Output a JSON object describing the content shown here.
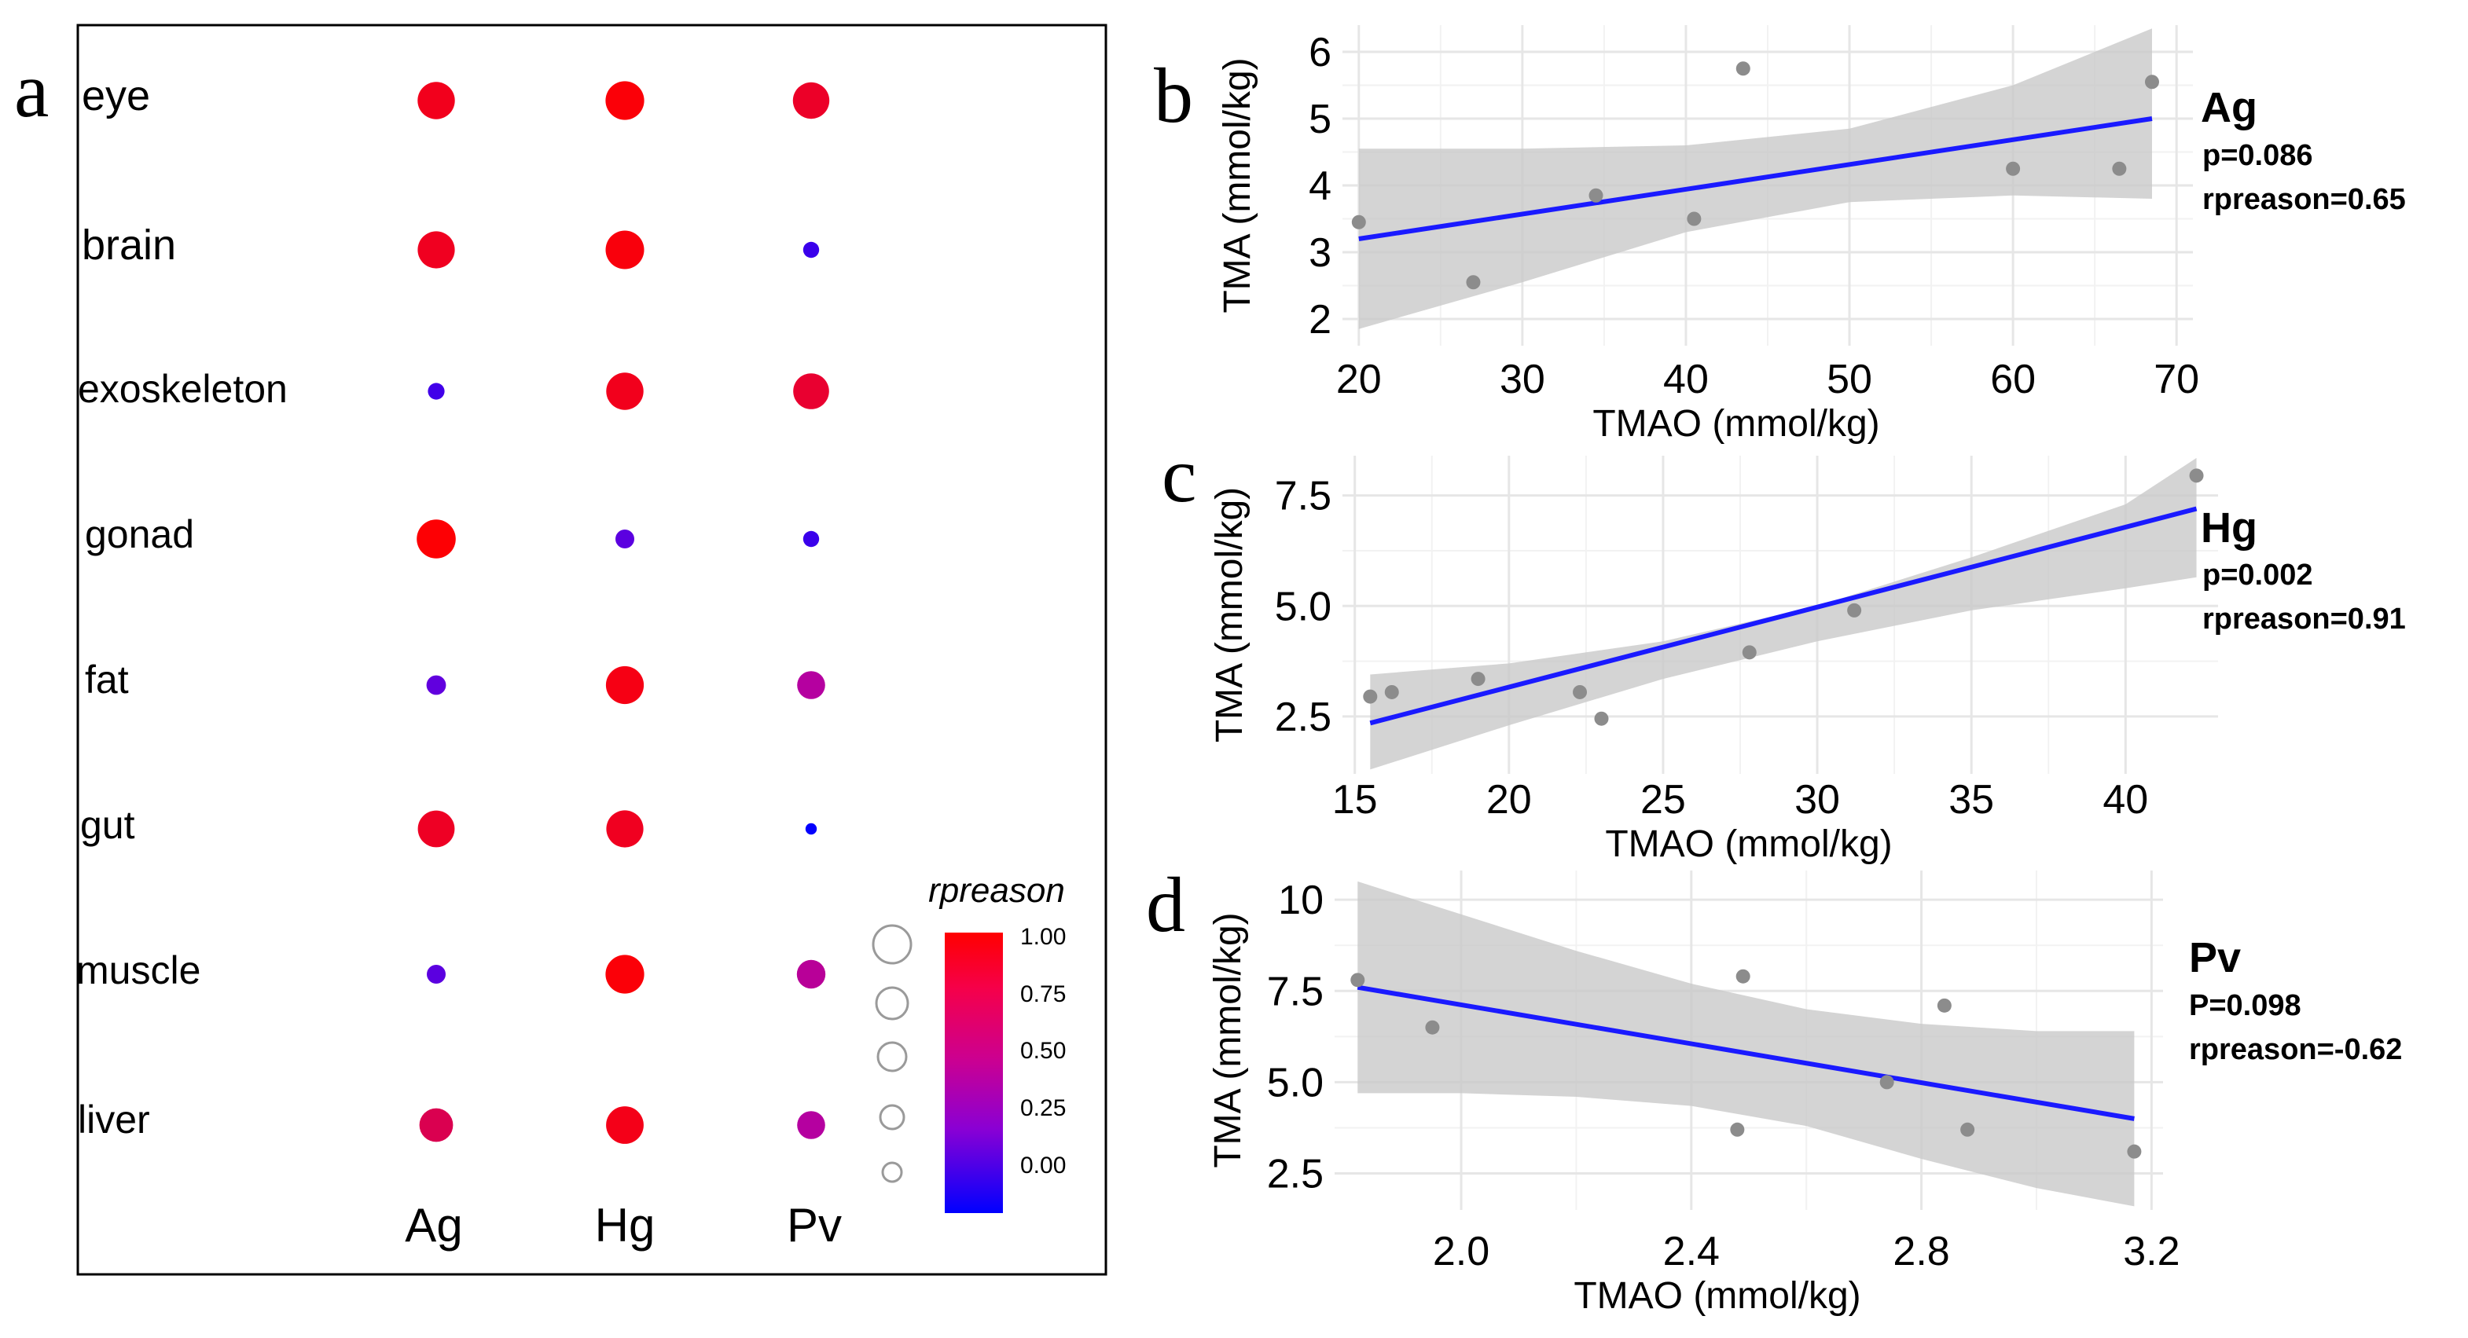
{
  "panels": {
    "a": {
      "label": "a"
    },
    "b": {
      "label": "b"
    },
    "c": {
      "label": "c"
    },
    "d": {
      "label": "d"
    }
  },
  "chart_data": [
    {
      "id": "a",
      "type": "scatter",
      "subtype": "bubble-matrix",
      "title": "",
      "rows": [
        "eye",
        "brain",
        "exoskeleton",
        "gonad",
        "fat",
        "gut",
        "muscle",
        "liver"
      ],
      "columns": [
        "Ag",
        "Hg",
        "Pv"
      ],
      "values": [
        [
          0.93,
          0.98,
          0.9
        ],
        [
          0.92,
          0.97,
          0.18
        ],
        [
          0.2,
          0.93,
          0.88
        ],
        [
          0.99,
          0.28,
          0.18
        ],
        [
          0.3,
          0.95,
          0.6
        ],
        [
          0.91,
          0.92,
          0.01
        ],
        [
          0.28,
          0.98,
          0.62
        ],
        [
          0.8,
          0.94,
          0.6
        ]
      ],
      "legend": {
        "title": "rpreason",
        "ticks": [
          "1.00",
          "0.75",
          "0.50",
          "0.25",
          "0.00"
        ],
        "range": [
          0,
          1
        ],
        "low_color": "#0000ff",
        "mid_color": "#a200c8",
        "high_color": "#ff0000"
      }
    },
    {
      "id": "b",
      "type": "scatter",
      "species": "Ag",
      "stat_p": "p=0.086",
      "stat_r": "rpreason=0.65",
      "xlabel": "TMAO (mmol/kg)",
      "ylabel": "TMA (mmol/kg)",
      "xlim": [
        19,
        71
      ],
      "ylim": [
        1.6,
        6.4
      ],
      "xticks": [
        20,
        30,
        40,
        50,
        60,
        70
      ],
      "yticks": [
        2,
        3,
        4,
        5,
        6
      ],
      "tick_labels_x": [
        "20",
        "30",
        "40",
        "50",
        "60",
        "70"
      ],
      "tick_labels_y": [
        "2",
        "3",
        "4",
        "5",
        "6"
      ],
      "points": [
        [
          20,
          3.45
        ],
        [
          27,
          2.55
        ],
        [
          34.5,
          3.85
        ],
        [
          40.5,
          3.5
        ],
        [
          43.5,
          5.75
        ],
        [
          60,
          4.25
        ],
        [
          66.5,
          4.25
        ],
        [
          68.5,
          5.55
        ]
      ],
      "fit": {
        "x0": 20,
        "y0": 3.2,
        "x1": 68.5,
        "y1": 5.0
      },
      "band_upper": [
        [
          20,
          4.55
        ],
        [
          30,
          4.55
        ],
        [
          40,
          4.6
        ],
        [
          50,
          4.85
        ],
        [
          60,
          5.5
        ],
        [
          68.5,
          6.35
        ]
      ],
      "band_lower": [
        [
          20,
          1.85
        ],
        [
          30,
          2.55
        ],
        [
          40,
          3.3
        ],
        [
          50,
          3.75
        ],
        [
          60,
          3.85
        ],
        [
          68.5,
          3.8
        ]
      ]
    },
    {
      "id": "c",
      "type": "scatter",
      "species": "Hg",
      "stat_p": "p=0.002",
      "stat_r": "rpreason=0.91",
      "xlabel": "TMAO (mmol/kg)",
      "ylabel": "TMA (mmol/kg)",
      "xlim": [
        14.6,
        43
      ],
      "ylim": [
        1.2,
        8.4
      ],
      "xticks": [
        15,
        20,
        25,
        30,
        35,
        40
      ],
      "yticks": [
        2.5,
        5.0,
        7.5
      ],
      "tick_labels_x": [
        "15",
        "20",
        "25",
        "30",
        "35",
        "40"
      ],
      "tick_labels_y": [
        "2.5",
        "5.0",
        "7.5"
      ],
      "points": [
        [
          15.5,
          2.95
        ],
        [
          16.2,
          3.05
        ],
        [
          19,
          3.35
        ],
        [
          22.3,
          3.05
        ],
        [
          23,
          2.45
        ],
        [
          27.8,
          3.95
        ],
        [
          31.2,
          4.9
        ],
        [
          42.3,
          7.95
        ]
      ],
      "fit": {
        "x0": 15.5,
        "y0": 2.35,
        "x1": 42.3,
        "y1": 7.2
      },
      "band_upper": [
        [
          15.5,
          3.45
        ],
        [
          20,
          3.7
        ],
        [
          25,
          4.2
        ],
        [
          30,
          5.0
        ],
        [
          35,
          6.1
        ],
        [
          40,
          7.3
        ],
        [
          42.3,
          8.35
        ]
      ],
      "band_lower": [
        [
          15.5,
          1.3
        ],
        [
          20,
          2.3
        ],
        [
          25,
          3.35
        ],
        [
          30,
          4.2
        ],
        [
          35,
          4.9
        ],
        [
          40,
          5.4
        ],
        [
          42.3,
          5.65
        ]
      ]
    },
    {
      "id": "d",
      "type": "scatter",
      "species": "Pv",
      "stat_p": "P=0.098",
      "stat_r": "rpreason=-0.62",
      "xlabel": "TMAO (mmol/kg)",
      "ylabel": "TMA (mmol/kg)",
      "xlim": [
        1.78,
        3.22
      ],
      "ylim": [
        1.5,
        10.8
      ],
      "xticks": [
        2.0,
        2.4,
        2.8,
        3.2
      ],
      "yticks": [
        2.5,
        5.0,
        7.5,
        10
      ],
      "tick_labels_x": [
        "2.0",
        "2.4",
        "2.8",
        "3.2"
      ],
      "tick_labels_y": [
        "2.5",
        "5.0",
        "7.5",
        "10"
      ],
      "points": [
        [
          1.82,
          7.8
        ],
        [
          1.95,
          6.5
        ],
        [
          2.48,
          3.7
        ],
        [
          2.49,
          7.9
        ],
        [
          2.74,
          5.0
        ],
        [
          2.84,
          7.1
        ],
        [
          2.88,
          3.7
        ],
        [
          3.17,
          3.1
        ]
      ],
      "fit": {
        "x0": 1.82,
        "y0": 7.6,
        "x1": 3.17,
        "y1": 4.0
      },
      "band_upper": [
        [
          1.82,
          10.5
        ],
        [
          2.0,
          9.6
        ],
        [
          2.2,
          8.6
        ],
        [
          2.4,
          7.7
        ],
        [
          2.6,
          7.0
        ],
        [
          2.8,
          6.6
        ],
        [
          3.0,
          6.4
        ],
        [
          3.17,
          6.4
        ]
      ],
      "band_lower": [
        [
          1.82,
          4.7
        ],
        [
          2.0,
          4.7
        ],
        [
          2.2,
          4.6
        ],
        [
          2.4,
          4.35
        ],
        [
          2.6,
          3.8
        ],
        [
          2.8,
          2.9
        ],
        [
          3.0,
          2.1
        ],
        [
          3.17,
          1.6
        ]
      ]
    }
  ]
}
